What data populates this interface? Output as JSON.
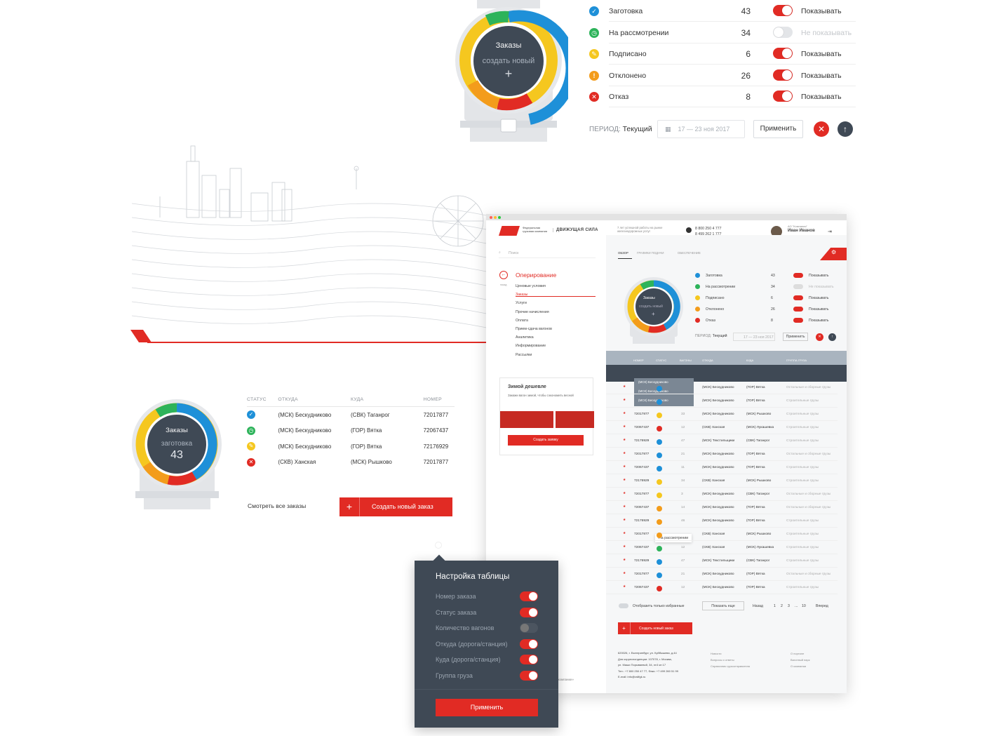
{
  "colors": {
    "accent": "#e12b24",
    "dark": "#3f4955",
    "blue": "#1e90d8",
    "green": "#2db35a",
    "yellow": "#f5c71f",
    "orange": "#f39c1b",
    "red": "#e12b24"
  },
  "top_tank": {
    "title": "Заказы",
    "action": "создать новый",
    "plus": "+"
  },
  "statuses": [
    {
      "icon": "check-icon",
      "label": "Заготовка",
      "count": "43",
      "on": true,
      "show": "Показывать",
      "color": "#1e90d8",
      "glyph": "✓"
    },
    {
      "icon": "clock-icon",
      "label": "На рассмотрении",
      "count": "34",
      "on": false,
      "show": "Не показывать",
      "color": "#2db35a",
      "glyph": "◷"
    },
    {
      "icon": "pen-icon",
      "label": "Подписано",
      "count": "6",
      "on": true,
      "show": "Показывать",
      "color": "#f5c71f",
      "glyph": "✎"
    },
    {
      "icon": "exclamation-icon",
      "label": "Отклонено",
      "count": "26",
      "on": true,
      "show": "Показывать",
      "color": "#f39c1b",
      "glyph": "!"
    },
    {
      "icon": "cross-icon",
      "label": "Отказ",
      "count": "8",
      "on": true,
      "show": "Показывать",
      "color": "#e12b24",
      "glyph": "✕"
    }
  ],
  "period": {
    "label": "ПЕРИОД:",
    "value": "Текущий",
    "dates": "17 — 23 ноя 2017",
    "apply": "Применить"
  },
  "mid_tank": {
    "title": "Заказы",
    "status": "заготовка",
    "count": "43"
  },
  "orders": {
    "headers": [
      "СТАТУС",
      "ОТКУДА",
      "КУДА",
      "НОМЕР"
    ],
    "rows": [
      {
        "color": "#1e90d8",
        "glyph": "✓",
        "from": "(МСК) Бескудниково",
        "to": "(СВК) Таганрог",
        "num": "72017877"
      },
      {
        "color": "#2db35a",
        "glyph": "◷",
        "from": "(МСК) Бескудниково",
        "to": "(ГОР) Вятка",
        "num": "72067437"
      },
      {
        "color": "#f5c71f",
        "glyph": "✎",
        "from": "(МСК) Бескудниково",
        "to": "(ГОР) Вятка",
        "num": "72176929"
      },
      {
        "color": "#e12b24",
        "glyph": "✕",
        "from": "(СКВ) Ханская",
        "to": "(МСК) Рышково",
        "num": "72017877"
      }
    ],
    "see_all": "Смотреть все заказы",
    "create": "Создать новый заказ"
  },
  "settings": {
    "title": "Настройка таблицы",
    "items": [
      {
        "label": "Номер заказа",
        "on": true
      },
      {
        "label": "Статус заказа",
        "on": true
      },
      {
        "label": "Количество вагонов",
        "on": false
      },
      {
        "label": "Откуда (дорога/станция)",
        "on": true
      },
      {
        "label": "Куда (дорога/станция)",
        "on": true
      },
      {
        "label": "Группа груза",
        "on": true
      }
    ],
    "apply": "Применить"
  },
  "app": {
    "brand": "Федеральная грузовая компания",
    "slogan": "ДВИЖУЩАЯ СИЛА",
    "tagline": "7 лет успешной работы на рынке железнодорожных услуг",
    "phone1": "8 800 250 4 777",
    "phone2": "8 499 262 1 777",
    "company": "АО \"Компания\"",
    "user": "Иван Иванов",
    "role": "Администратор",
    "search": "Поиск",
    "back": "назад",
    "section": "Оперирование",
    "menu": [
      "Ценовые условия",
      "Заказы",
      "Услуги",
      "Прочие начисления",
      "Оплата",
      "Прием-сдача вагонов",
      "Аналитика",
      "Информирование",
      "Рассылки"
    ],
    "tabs": [
      "ОБЗОР",
      "ГРАФИКИ ПОДАЧИ",
      "ОБЕСПЕЧЕНИЕ"
    ],
    "promo_title": "Зимой дешевле",
    "promo_text": "Закажи вагон зимой, чтобы сэкономить весной",
    "promo_btn": "Создать заявку",
    "table_headers": [
      "НОМЕР",
      "СТАТУС",
      "ВАГОНЫ",
      "ОТКУДА",
      "КУДА",
      "ГРУППА ГРУЗА"
    ],
    "dropdown": [
      "(МСК) Бескудниково",
      "(МСК) Бескудниково",
      "(МСК) Бескудниково"
    ],
    "tooltip": "На рассмотрении",
    "rows": [
      {
        "num": "",
        "c": "#1e90d8",
        "w": "",
        "from": "(МСК) Бескудниково",
        "to": "(ГОР) Вятка",
        "g": "Остальные и сборные грузы"
      },
      {
        "num": "",
        "c": "#1e90d8",
        "w": "",
        "from": "(МСК) Бескудниково",
        "to": "(ГОР) Вятка",
        "g": "Строительные грузы"
      },
      {
        "num": "72017877",
        "c": "#f5c71f",
        "w": "33",
        "from": "(МСК) Бескудниково",
        "to": "(МСК) Рышково",
        "g": "Строительные грузы"
      },
      {
        "num": "72067437",
        "c": "#e12b24",
        "w": "12",
        "from": "(СКВ) Ханская",
        "to": "(МСК) Лукашевка",
        "g": "Строительные грузы"
      },
      {
        "num": "72176929",
        "c": "#1e90d8",
        "w": "47",
        "from": "(МСК) Текстильщики",
        "to": "(СВК) Таганрог",
        "g": "Строительные грузы"
      },
      {
        "num": "72017877",
        "c": "#1e90d8",
        "w": "21",
        "from": "(МСК) Бескудниково",
        "to": "(ГОР) Вятка",
        "g": "Остальные и сборные грузы"
      },
      {
        "num": "72067437",
        "c": "#1e90d8",
        "w": "11",
        "from": "(МСК) Бескудниково",
        "to": "(ГОР) Вятка",
        "g": "Строительные грузы"
      },
      {
        "num": "72176929",
        "c": "#f5c71f",
        "w": "34",
        "from": "(СКВ) Ханская",
        "to": "(МСК) Рышково",
        "g": "Строительные грузы"
      },
      {
        "num": "72017877",
        "c": "#f5c71f",
        "w": "3",
        "from": "(МСК) Бескудниково",
        "to": "(СВК) Таганрог",
        "g": "Остальные и сборные грузы"
      },
      {
        "num": "72067437",
        "c": "#f39c1b",
        "w": "14",
        "from": "(МСК) Бескудниково",
        "to": "(ГОР) Вятка",
        "g": "Остальные и сборные грузы"
      },
      {
        "num": "72176929",
        "c": "#f39c1b",
        "w": "46",
        "from": "(МСК) Бескудниково",
        "to": "(ГОР) Вятка",
        "g": "Строительные грузы"
      },
      {
        "num": "72017877",
        "c": "#f39c1b",
        "w": "",
        "from": "(СКВ) Ханская",
        "to": "(МСК) Рышково",
        "g": "Строительные грузы"
      },
      {
        "num": "72067437",
        "c": "#2db35a",
        "w": "12",
        "from": "(СКВ) Ханская",
        "to": "(МСК) Лукашевка",
        "g": "Строительные грузы"
      },
      {
        "num": "72176929",
        "c": "#1e90d8",
        "w": "47",
        "from": "(МСК) Текстильщики",
        "to": "(СВК) Таганрог",
        "g": "Строительные грузы"
      },
      {
        "num": "72017877",
        "c": "#1e90d8",
        "w": "21",
        "from": "(МСК) Бескудниково",
        "to": "(ГОР) Вятка",
        "g": "Остальные и сборные грузы"
      },
      {
        "num": "72067437",
        "c": "#e12b24",
        "w": "12",
        "from": "(МСК) Бескудниково",
        "to": "(ГОР) Вятка",
        "g": "Строительные грузы"
      }
    ],
    "only_fav": "Отобразить только избранные",
    "show_more": "Показать еще",
    "prev": "Назад",
    "pages": [
      "1",
      "2",
      "3",
      "...",
      "10"
    ],
    "next": "Вперед",
    "create": "Создать новый заказ",
    "footer_addr": [
      "620026, г. Екатеринбург, ул. Куйбышева, д.44",
      "Для корреспонденции: 107078, г. Москва,",
      "ул. Маши Порываевой, 34, эт.6 кн 17",
      "Тел.: +7 800 250 47 77, Факс: +7 499 260 51 99",
      "E-mail: info@railfgk.ru"
    ],
    "footer_links1": [
      "Новости",
      "Вопросы и ответы",
      "Справочник грузоотправителя"
    ],
    "footer_links2": [
      "О портале",
      "Вагонный парк",
      "О компании"
    ],
    "footer_cut": "«компании»"
  }
}
